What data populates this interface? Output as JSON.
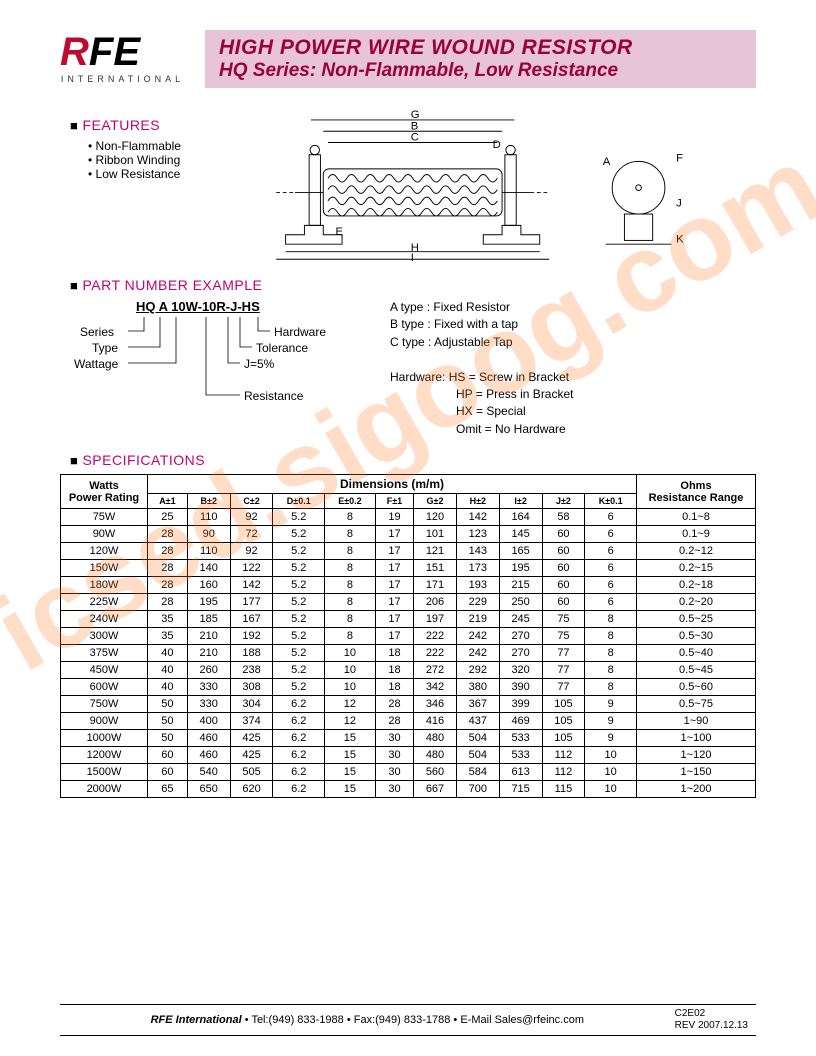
{
  "logo": {
    "r": "R",
    "fe": "FE",
    "sub": "INTERNATIONAL"
  },
  "title": {
    "line1": "HIGH POWER WIRE WOUND RESISTOR",
    "line2": "HQ Series: Non-Flammable, Low Resistance"
  },
  "watermark": "icsed.sigoog.com",
  "sections": {
    "features": "FEATURES",
    "partnum": "PART NUMBER EXAMPLE",
    "specs": "SPECIFICATIONS"
  },
  "features": [
    "Non-Flammable",
    "Ribbon Winding",
    "Low Resistance"
  ],
  "drawingLabels": {
    "A": "A",
    "B": "B",
    "C": "C",
    "D": "D",
    "E": "E",
    "F": "F",
    "G": "G",
    "H": "H",
    "I": "I",
    "J": "J",
    "K": "K"
  },
  "partNumber": {
    "code": "HQ A 10W-10R-J-HS",
    "labels": {
      "series": "Series",
      "type": "Type",
      "wattage": "Wattage",
      "resistance": "Resistance",
      "jnote": "J=5%",
      "tolerance": "Tolerance",
      "hardware": "Hardware"
    },
    "types": {
      "a": "A type :  Fixed Resistor",
      "b": "B type :  Fixed with a tap",
      "c": "C type :  Adjustable Tap"
    },
    "hardware": {
      "title": "Hardware:",
      "hs": "HS = Screw in Bracket",
      "hp": "HP = Press in Bracket",
      "hx": "HX = Special",
      "omit": "Omit = No Hardware"
    }
  },
  "specTable": {
    "headers": {
      "watts": "Watts\nPower Rating",
      "dims": "Dimensions (m/m)",
      "ohms": "Ohms\nResistance Range"
    },
    "dimCols": [
      "A±1",
      "B±2",
      "C±2",
      "D±0.1",
      "E±0.2",
      "F±1",
      "G±2",
      "H±2",
      "I±2",
      "J±2",
      "K±0.1"
    ],
    "rows": [
      [
        "75W",
        "25",
        "110",
        "92",
        "5.2",
        "8",
        "19",
        "120",
        "142",
        "164",
        "58",
        "6",
        "0.1~8"
      ],
      [
        "90W",
        "28",
        "90",
        "72",
        "5.2",
        "8",
        "17",
        "101",
        "123",
        "145",
        "60",
        "6",
        "0.1~9"
      ],
      [
        "120W",
        "28",
        "110",
        "92",
        "5.2",
        "8",
        "17",
        "121",
        "143",
        "165",
        "60",
        "6",
        "0.2~12"
      ],
      [
        "150W",
        "28",
        "140",
        "122",
        "5.2",
        "8",
        "17",
        "151",
        "173",
        "195",
        "60",
        "6",
        "0.2~15"
      ],
      [
        "180W",
        "28",
        "160",
        "142",
        "5.2",
        "8",
        "17",
        "171",
        "193",
        "215",
        "60",
        "6",
        "0.2~18"
      ],
      [
        "225W",
        "28",
        "195",
        "177",
        "5.2",
        "8",
        "17",
        "206",
        "229",
        "250",
        "60",
        "6",
        "0.2~20"
      ],
      [
        "240W",
        "35",
        "185",
        "167",
        "5.2",
        "8",
        "17",
        "197",
        "219",
        "245",
        "75",
        "8",
        "0.5~25"
      ],
      [
        "300W",
        "35",
        "210",
        "192",
        "5.2",
        "8",
        "17",
        "222",
        "242",
        "270",
        "75",
        "8",
        "0.5~30"
      ],
      [
        "375W",
        "40",
        "210",
        "188",
        "5.2",
        "10",
        "18",
        "222",
        "242",
        "270",
        "77",
        "8",
        "0.5~40"
      ],
      [
        "450W",
        "40",
        "260",
        "238",
        "5.2",
        "10",
        "18",
        "272",
        "292",
        "320",
        "77",
        "8",
        "0.5~45"
      ],
      [
        "600W",
        "40",
        "330",
        "308",
        "5.2",
        "10",
        "18",
        "342",
        "380",
        "390",
        "77",
        "8",
        "0.5~60"
      ],
      [
        "750W",
        "50",
        "330",
        "304",
        "6.2",
        "12",
        "28",
        "346",
        "367",
        "399",
        "105",
        "9",
        "0.5~75"
      ],
      [
        "900W",
        "50",
        "400",
        "374",
        "6.2",
        "12",
        "28",
        "416",
        "437",
        "469",
        "105",
        "9",
        "1~90"
      ],
      [
        "1000W",
        "50",
        "460",
        "425",
        "6.2",
        "15",
        "30",
        "480",
        "504",
        "533",
        "105",
        "9",
        "1~100"
      ],
      [
        "1200W",
        "60",
        "460",
        "425",
        "6.2",
        "15",
        "30",
        "480",
        "504",
        "533",
        "112",
        "10",
        "1~120"
      ],
      [
        "1500W",
        "60",
        "540",
        "505",
        "6.2",
        "15",
        "30",
        "560",
        "584",
        "613",
        "112",
        "10",
        "1~150"
      ],
      [
        "2000W",
        "65",
        "650",
        "620",
        "6.2",
        "15",
        "30",
        "667",
        "700",
        "715",
        "115",
        "10",
        "1~200"
      ]
    ]
  },
  "footer": {
    "company": "RFE International",
    "tel": "Tel:(949) 833-1988",
    "fax": "Fax:(949) 833-1788",
    "email": "E-Mail Sales@rfeinc.com",
    "code": "C2E02",
    "rev": "REV 2007.12.13"
  }
}
